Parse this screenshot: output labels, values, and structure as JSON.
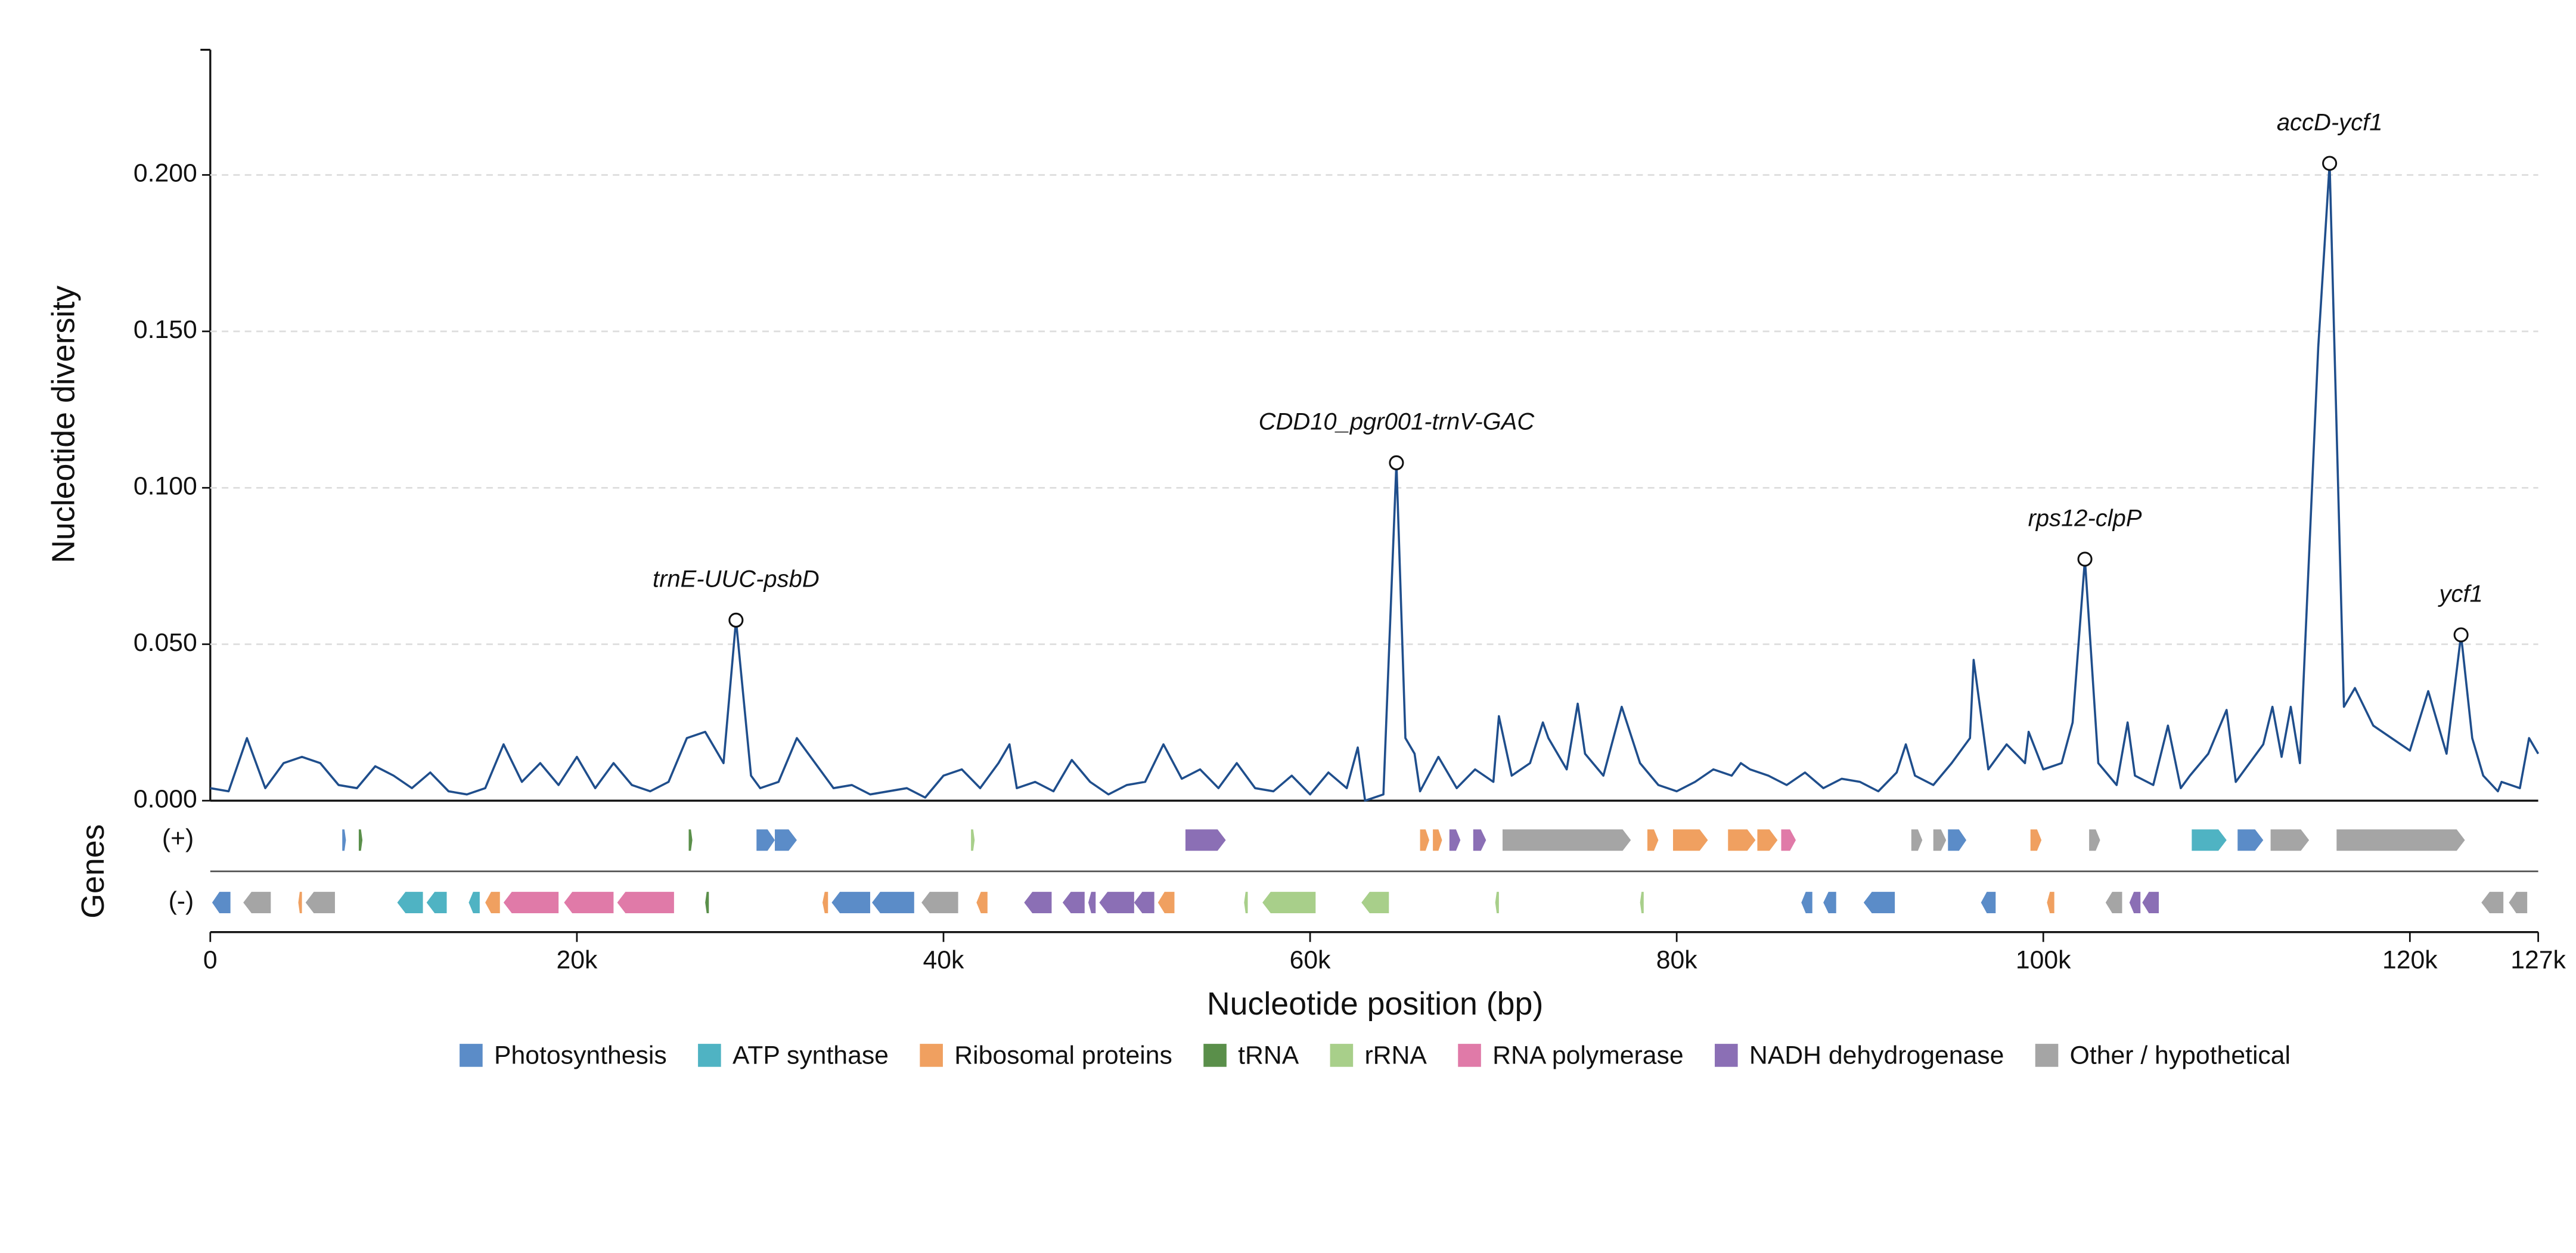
{
  "chart_data": {
    "type": "line",
    "ylabel": "Nucleotide diversity",
    "xlabel": "Nucleotide position (bp)",
    "track_label": "Genes",
    "strand_labels": [
      "(+)",
      "(-)"
    ],
    "color": "#1f4e8c",
    "grid": true,
    "xlim": [
      0,
      127000
    ],
    "ylim": [
      0,
      0.24
    ],
    "xticks": [
      0,
      {
        "value": 20000,
        "label": "20k"
      },
      {
        "value": 40000,
        "label": "40k"
      },
      {
        "value": 60000,
        "label": "60k"
      },
      {
        "value": 80000,
        "label": "80k"
      },
      {
        "value": 100000,
        "label": "100k"
      },
      {
        "value": 120000,
        "label": "120k"
      },
      {
        "value": 127000,
        "label": "127k"
      }
    ],
    "yticks": [
      {
        "value": 0,
        "label": "0.000"
      },
      {
        "value": 0.05,
        "label": "0.050"
      },
      {
        "value": 0.1,
        "label": "0.100"
      },
      {
        "value": 0.15,
        "label": "0.150"
      },
      {
        "value": 0.2,
        "label": "0.200"
      }
    ],
    "x": [
      0,
      1000,
      2000,
      3000,
      4000,
      5000,
      6000,
      7000,
      8000,
      9000,
      10000,
      11000,
      12000,
      13000,
      14000,
      15000,
      16000,
      17000,
      18000,
      19000,
      20000,
      21000,
      22000,
      23000,
      24000,
      25000,
      26000,
      27000,
      28000,
      28680,
      29500,
      30000,
      31000,
      32000,
      33000,
      34000,
      35000,
      36000,
      37000,
      38000,
      39000,
      40000,
      41000,
      42000,
      43000,
      43600,
      44000,
      45000,
      46000,
      47000,
      48000,
      49000,
      50000,
      51000,
      52000,
      53000,
      54000,
      55000,
      56000,
      57000,
      58000,
      59000,
      60000,
      61000,
      62000,
      62600,
      63000,
      64000,
      64710,
      65200,
      65700,
      66000,
      67000,
      68000,
      69000,
      70000,
      70300,
      71000,
      72000,
      72700,
      73000,
      74000,
      74600,
      75000,
      76000,
      77000,
      78000,
      79000,
      80000,
      81000,
      82000,
      83000,
      83500,
      84000,
      85000,
      86000,
      87000,
      88000,
      89000,
      90000,
      91000,
      92000,
      92500,
      93000,
      94000,
      95000,
      96000,
      96200,
      97000,
      98000,
      99000,
      99200,
      100000,
      101000,
      101600,
      102270,
      103000,
      104000,
      104600,
      105000,
      106000,
      106800,
      107500,
      108000,
      109000,
      110000,
      110500,
      111000,
      112000,
      112500,
      113000,
      113500,
      114000,
      115000,
      115620,
      116400,
      117000,
      118000,
      119000,
      120000,
      121000,
      122000,
      122790,
      123400,
      124000,
      124800,
      125000,
      126000,
      126500,
      127000
    ],
    "values": [
      0.004,
      0.003,
      0.02,
      0.004,
      0.012,
      0.014,
      0.012,
      0.005,
      0.004,
      0.011,
      0.008,
      0.004,
      0.009,
      0.003,
      0.002,
      0.004,
      0.018,
      0.006,
      0.012,
      0.005,
      0.014,
      0.004,
      0.012,
      0.005,
      0.003,
      0.006,
      0.02,
      0.022,
      0.012,
      0.0577,
      0.008,
      0.004,
      0.006,
      0.02,
      0.012,
      0.004,
      0.005,
      0.002,
      0.003,
      0.004,
      0.001,
      0.008,
      0.01,
      0.004,
      0.012,
      0.018,
      0.004,
      0.006,
      0.003,
      0.013,
      0.006,
      0.002,
      0.005,
      0.006,
      0.018,
      0.007,
      0.01,
      0.004,
      0.012,
      0.004,
      0.003,
      0.008,
      0.002,
      0.009,
      0.004,
      0.017,
      0,
      0.002,
      0.108,
      0.02,
      0.015,
      0.003,
      0.014,
      0.004,
      0.01,
      0.006,
      0.027,
      0.008,
      0.012,
      0.025,
      0.02,
      0.01,
      0.031,
      0.015,
      0.008,
      0.03,
      0.012,
      0.005,
      0.003,
      0.006,
      0.01,
      0.008,
      0.012,
      0.01,
      0.008,
      0.005,
      0.009,
      0.004,
      0.007,
      0.006,
      0.003,
      0.009,
      0.018,
      0.008,
      0.005,
      0.012,
      0.02,
      0.045,
      0.01,
      0.018,
      0.012,
      0.022,
      0.01,
      0.012,
      0.025,
      0.0772,
      0.012,
      0.005,
      0.025,
      0.008,
      0.005,
      0.024,
      0.004,
      0.008,
      0.015,
      0.029,
      0.006,
      0.01,
      0.018,
      0.03,
      0.014,
      0.03,
      0.012,
      0.145,
      0.2037,
      0.03,
      0.036,
      0.024,
      0.02,
      0.016,
      0.035,
      0.015,
      0.053,
      0.02,
      0.008,
      0.003,
      0.006,
      0.004,
      0.02,
      0.015
    ],
    "annotations": [
      {
        "label": "trnE-UUC-psbD",
        "x": 28680,
        "y": 0.0577
      },
      {
        "label": "CDD10_pgr001-trnV-GAC",
        "x": 64710,
        "y": 0.108
      },
      {
        "label": "rps12-clpP",
        "x": 102270,
        "y": 0.0772
      },
      {
        "label": "accD-ycf1",
        "x": 115620,
        "y": 0.2037
      },
      {
        "label": "ycf1",
        "x": 122790,
        "y": 0.053
      }
    ],
    "categories_legend": [
      {
        "name": "Photosynthesis",
        "color": "#5b8cc8"
      },
      {
        "name": "ATP synthase",
        "color": "#4fb3c3"
      },
      {
        "name": "Ribosomal proteins",
        "color": "#f0a060"
      },
      {
        "name": "tRNA",
        "color": "#5a8f4a"
      },
      {
        "name": "rRNA",
        "color": "#a8cf8a"
      },
      {
        "name": "RNA polymerase",
        "color": "#e07aa8"
      },
      {
        "name": "NADH dehydrogenase",
        "color": "#8b6fb5"
      },
      {
        "name": "Other / hypothetical",
        "color": "#a5a5a5"
      }
    ],
    "genes": [
      {
        "start": 7200,
        "end": 7400,
        "strand": "+",
        "category": 0
      },
      {
        "start": 8100,
        "end": 8300,
        "strand": "+",
        "category": 3
      },
      {
        "start": 26100,
        "end": 26300,
        "strand": "+",
        "category": 3
      },
      {
        "start": 29800,
        "end": 30800,
        "strand": "+",
        "category": 0
      },
      {
        "start": 30800,
        "end": 32000,
        "strand": "+",
        "category": 0
      },
      {
        "start": 41500,
        "end": 41700,
        "strand": "+",
        "category": 4
      },
      {
        "start": 53200,
        "end": 55400,
        "strand": "+",
        "category": 6
      },
      {
        "start": 66000,
        "end": 66500,
        "strand": "+",
        "category": 2
      },
      {
        "start": 66700,
        "end": 67200,
        "strand": "+",
        "category": 2
      },
      {
        "start": 67600,
        "end": 68200,
        "strand": "+",
        "category": 6
      },
      {
        "start": 68900,
        "end": 69600,
        "strand": "+",
        "category": 6
      },
      {
        "start": 70500,
        "end": 77500,
        "strand": "+",
        "category": 7
      },
      {
        "start": 78400,
        "end": 79000,
        "strand": "+",
        "category": 2
      },
      {
        "start": 79800,
        "end": 81700,
        "strand": "+",
        "category": 2
      },
      {
        "start": 82800,
        "end": 84300,
        "strand": "+",
        "category": 2
      },
      {
        "start": 84400,
        "end": 85500,
        "strand": "+",
        "category": 2
      },
      {
        "start": 85700,
        "end": 86500,
        "strand": "+",
        "category": 5
      },
      {
        "start": 92800,
        "end": 93400,
        "strand": "+",
        "category": 7
      },
      {
        "start": 94000,
        "end": 94700,
        "strand": "+",
        "category": 7
      },
      {
        "start": 94800,
        "end": 95800,
        "strand": "+",
        "category": 0
      },
      {
        "start": 99300,
        "end": 99900,
        "strand": "+",
        "category": 2
      },
      {
        "start": 102500,
        "end": 103100,
        "strand": "+",
        "category": 7
      },
      {
        "start": 108100,
        "end": 110000,
        "strand": "+",
        "category": 1
      },
      {
        "start": 110600,
        "end": 112000,
        "strand": "+",
        "category": 0
      },
      {
        "start": 112400,
        "end": 114500,
        "strand": "+",
        "category": 7
      },
      {
        "start": 116000,
        "end": 123000,
        "strand": "+",
        "category": 7
      },
      {
        "start": 100,
        "end": 1100,
        "strand": "-",
        "category": 0
      },
      {
        "start": 1800,
        "end": 3300,
        "strand": "-",
        "category": 7
      },
      {
        "start": 4800,
        "end": 5000,
        "strand": "-",
        "category": 2
      },
      {
        "start": 5200,
        "end": 6800,
        "strand": "-",
        "category": 7
      },
      {
        "start": 10200,
        "end": 11600,
        "strand": "-",
        "category": 1
      },
      {
        "start": 11800,
        "end": 12900,
        "strand": "-",
        "category": 1
      },
      {
        "start": 14100,
        "end": 14700,
        "strand": "-",
        "category": 1
      },
      {
        "start": 15000,
        "end": 15800,
        "strand": "-",
        "category": 2
      },
      {
        "start": 16000,
        "end": 19000,
        "strand": "-",
        "category": 5
      },
      {
        "start": 19300,
        "end": 22000,
        "strand": "-",
        "category": 5
      },
      {
        "start": 22200,
        "end": 25300,
        "strand": "-",
        "category": 5
      },
      {
        "start": 27000,
        "end": 27200,
        "strand": "-",
        "category": 3
      },
      {
        "start": 33400,
        "end": 33700,
        "strand": "-",
        "category": 2
      },
      {
        "start": 33900,
        "end": 36000,
        "strand": "-",
        "category": 0
      },
      {
        "start": 36100,
        "end": 38400,
        "strand": "-",
        "category": 0
      },
      {
        "start": 38800,
        "end": 40800,
        "strand": "-",
        "category": 7
      },
      {
        "start": 41800,
        "end": 42400,
        "strand": "-",
        "category": 2
      },
      {
        "start": 44400,
        "end": 45900,
        "strand": "-",
        "category": 6
      },
      {
        "start": 46500,
        "end": 47700,
        "strand": "-",
        "category": 6
      },
      {
        "start": 47900,
        "end": 48300,
        "strand": "-",
        "category": 6
      },
      {
        "start": 48500,
        "end": 50400,
        "strand": "-",
        "category": 6
      },
      {
        "start": 50400,
        "end": 51500,
        "strand": "-",
        "category": 6
      },
      {
        "start": 51700,
        "end": 52600,
        "strand": "-",
        "category": 2
      },
      {
        "start": 56400,
        "end": 56600,
        "strand": "-",
        "category": 4
      },
      {
        "start": 57400,
        "end": 60300,
        "strand": "-",
        "category": 4
      },
      {
        "start": 62800,
        "end": 64300,
        "strand": "-",
        "category": 4
      },
      {
        "start": 70100,
        "end": 70300,
        "strand": "-",
        "category": 4
      },
      {
        "start": 78000,
        "end": 78200,
        "strand": "-",
        "category": 4
      },
      {
        "start": 86800,
        "end": 87400,
        "strand": "-",
        "category": 0
      },
      {
        "start": 88000,
        "end": 88700,
        "strand": "-",
        "category": 0
      },
      {
        "start": 90200,
        "end": 91900,
        "strand": "-",
        "category": 0
      },
      {
        "start": 96600,
        "end": 97400,
        "strand": "-",
        "category": 0
      },
      {
        "start": 100200,
        "end": 100600,
        "strand": "-",
        "category": 2
      },
      {
        "start": 103400,
        "end": 104300,
        "strand": "-",
        "category": 7
      },
      {
        "start": 104700,
        "end": 105300,
        "strand": "-",
        "category": 6
      },
      {
        "start": 105400,
        "end": 106300,
        "strand": "-",
        "category": 6
      },
      {
        "start": 123900,
        "end": 125100,
        "strand": "-",
        "category": 7
      },
      {
        "start": 125400,
        "end": 126400,
        "strand": "-",
        "category": 7
      }
    ]
  }
}
